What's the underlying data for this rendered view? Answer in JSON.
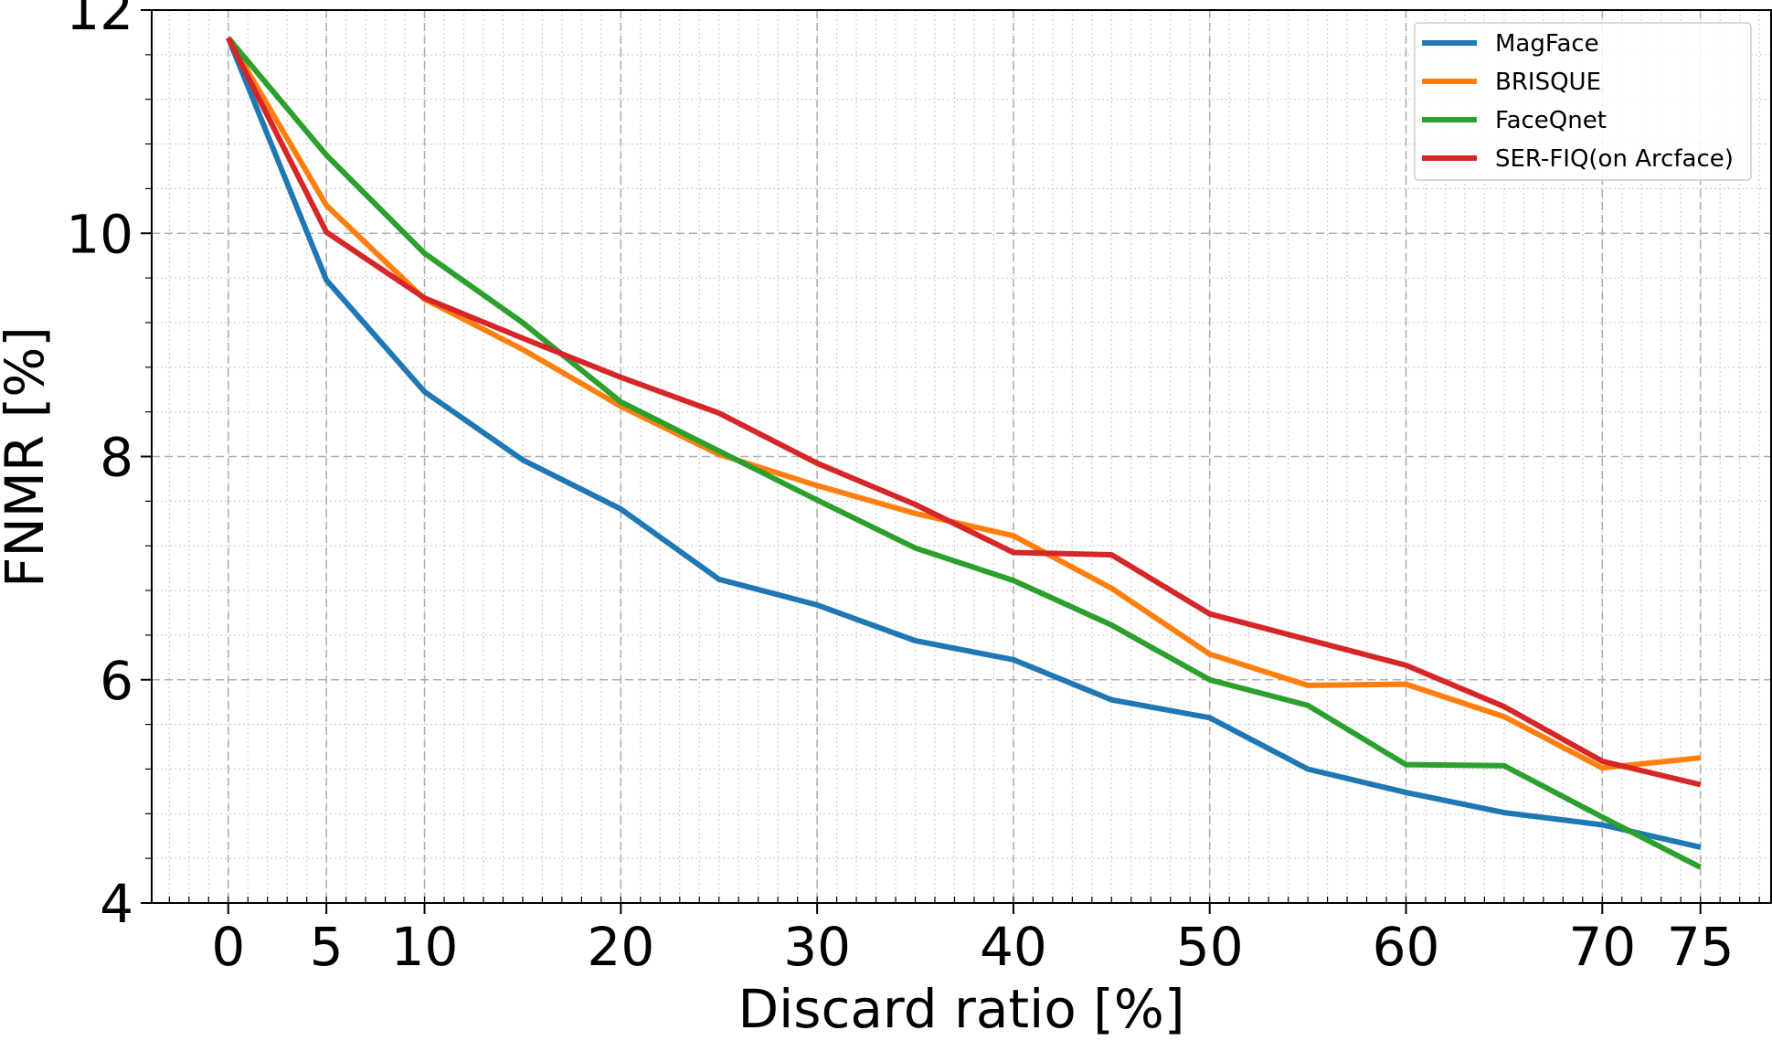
{
  "chart_data": {
    "type": "line",
    "title": "",
    "xlabel": "Discard ratio [%]",
    "ylabel": "FNMR [%]",
    "xlim": [
      -3.9,
      78.6
    ],
    "ylim": [
      4,
      12
    ],
    "x_ticks": [
      0,
      5,
      10,
      20,
      30,
      40,
      50,
      60,
      70,
      75
    ],
    "x_tick_labels": [
      "0",
      "5",
      "10",
      "20",
      "30",
      "40",
      "50",
      "60",
      "70",
      "75"
    ],
    "y_ticks": [
      4,
      6,
      8,
      10,
      12
    ],
    "y_tick_labels": [
      "4",
      "6",
      "8",
      "10",
      "12"
    ],
    "grid": true,
    "minor_grid": true,
    "legend_position": "top-right",
    "x": [
      0,
      5,
      10,
      15,
      20,
      25,
      30,
      35,
      40,
      45,
      50,
      55,
      60,
      65,
      70,
      75
    ],
    "series": [
      {
        "name": "MagFace",
        "color": "#1f77b4",
        "values": [
          11.75,
          9.58,
          8.58,
          7.97,
          7.53,
          6.9,
          6.67,
          6.35,
          6.18,
          5.82,
          5.66,
          5.2,
          4.99,
          4.81,
          4.7,
          4.5
        ]
      },
      {
        "name": "BRISQUE",
        "color": "#ff7f0e",
        "values": [
          11.75,
          10.25,
          9.41,
          8.96,
          8.45,
          8.02,
          7.74,
          7.49,
          7.29,
          6.82,
          6.23,
          5.95,
          5.96,
          5.67,
          5.21,
          5.3
        ]
      },
      {
        "name": "FaceQnet",
        "color": "#2ca02c",
        "values": [
          11.75,
          10.7,
          9.82,
          9.2,
          8.49,
          8.05,
          7.61,
          7.18,
          6.89,
          6.49,
          6.0,
          5.77,
          5.24,
          5.23,
          4.77,
          4.32
        ]
      },
      {
        "name": "SER-FIQ(on Arcface)",
        "color": "#d62728",
        "values": [
          11.75,
          10.01,
          9.42,
          9.06,
          8.71,
          8.39,
          7.94,
          7.57,
          7.14,
          7.12,
          6.59,
          6.36,
          6.13,
          5.76,
          5.27,
          5.06
        ]
      }
    ]
  }
}
